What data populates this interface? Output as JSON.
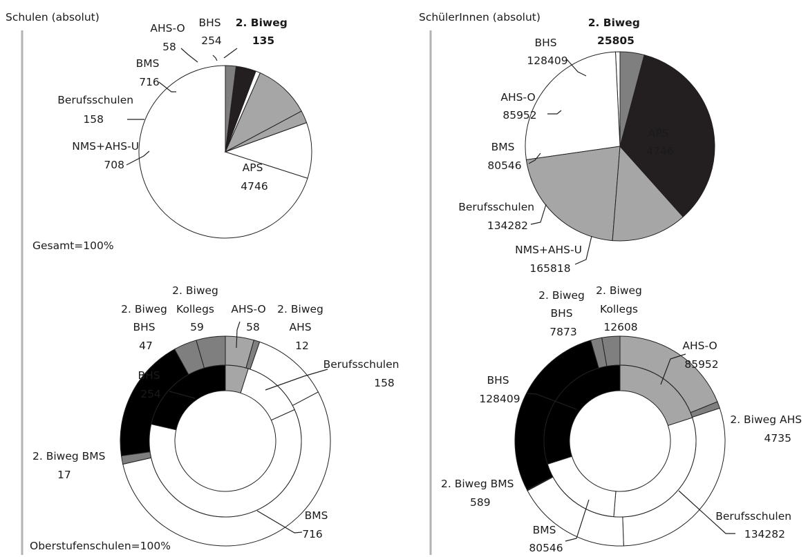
{
  "colors": {
    "aps": "#ffffff",
    "nms": "#ffffff",
    "berufsschulen": "#ffffff",
    "bms": "#ffffff",
    "bms_light": "#a6a6a6",
    "ahs_o": "#a6a6a6",
    "bhs": "#231f20",
    "biweg": "#7f7f7f",
    "stroke": "#231f20"
  },
  "charts": {
    "schulen": {
      "title": "Schulen (absolut)",
      "note": "Gesamt=100%",
      "labels": {
        "aps": [
          "APS",
          "4746"
        ],
        "nms": [
          "NMS+AHS-U",
          "708"
        ],
        "berufsschulen": [
          "Berufsschulen",
          "158"
        ],
        "bms": [
          "BMS",
          "716"
        ],
        "ahs_o": [
          "AHS-O",
          "58"
        ],
        "bhs": [
          "BHS",
          "254"
        ],
        "biweg": [
          "2. Biweg",
          "135"
        ]
      }
    },
    "schueler": {
      "title": "SchülerInnen (absolut)",
      "labels": {
        "aps": [
          "APS",
          "4746"
        ],
        "nms": [
          "NMS+AHS-U",
          "165818"
        ],
        "berufsschulen": [
          "Berufsschulen",
          "134282"
        ],
        "bms": [
          "BMS",
          "80546"
        ],
        "ahs_o": [
          "AHS-O",
          "85952"
        ],
        "bhs": [
          "BHS",
          "128409"
        ],
        "biweg": [
          "2. Biweg",
          "25805"
        ]
      }
    },
    "ober_schulen": {
      "note": "Oberstufenschulen=100%",
      "labels": {
        "biweg_kollegs": [
          "2. Biweg",
          "Kollegs",
          "59"
        ],
        "biweg_bhs": [
          "2. Biweg",
          "BHS",
          "47"
        ],
        "ahs_o": [
          "AHS-O",
          "58"
        ],
        "biweg_ahs": [
          "2. Biweg",
          "AHS",
          "12"
        ],
        "berufsschulen": [
          "Berufsschulen",
          "158"
        ],
        "bhs": [
          "BHS",
          "254"
        ],
        "biweg_bms": [
          "2. Biweg BMS",
          "17"
        ],
        "bms": [
          "BMS",
          "716"
        ]
      }
    },
    "ober_schueler": {
      "labels": {
        "biweg_kollegs": [
          "2. Biweg",
          "Kollegs",
          "12608"
        ],
        "biweg_bhs": [
          "2. Biweg",
          "BHS",
          "7873"
        ],
        "ahs_o": [
          "AHS-O",
          "85952"
        ],
        "biweg_ahs": [
          "2. Biweg AHS",
          "4735"
        ],
        "bhs": [
          "BHS",
          "128409"
        ],
        "berufsschulen": [
          "Berufsschulen",
          "134282"
        ],
        "biweg_bms": [
          "2. Biweg BMS",
          "589"
        ],
        "bms": [
          "BMS",
          "80546"
        ]
      }
    }
  },
  "chart_data": [
    {
      "type": "pie",
      "title": "Schulen (absolut)",
      "note": "Gesamt=100%",
      "slices": [
        {
          "name": "APS",
          "value": 4746,
          "color": "#ffffff"
        },
        {
          "name": "NMS+AHS-U",
          "value": 708,
          "color": "#ffffff"
        },
        {
          "name": "Berufsschulen",
          "value": 158,
          "color": "#a6a6a6"
        },
        {
          "name": "BMS",
          "value": 716,
          "color": "#a6a6a6"
        },
        {
          "name": "AHS-O",
          "value": 58,
          "color": "#ffffff"
        },
        {
          "name": "BHS",
          "value": 254,
          "color": "#231f20"
        },
        {
          "name": "2. Biweg",
          "value": 135,
          "color": "#7f7f7f"
        }
      ]
    },
    {
      "type": "pie",
      "title": "SchülerInnen (absolut)",
      "slices": [
        {
          "name": "APS",
          "value": 4746,
          "color": "#ffffff"
        },
        {
          "name": "NMS+AHS-U",
          "value": 165818,
          "color": "#ffffff"
        },
        {
          "name": "Berufsschulen",
          "value": 134282,
          "color": "#a6a6a6"
        },
        {
          "name": "BMS",
          "value": 80546,
          "color": "#a6a6a6"
        },
        {
          "name": "AHS-O",
          "value": 85952,
          "color": "#231f20"
        },
        {
          "name": "BHS",
          "value": 128409,
          "color": "#231f20"
        },
        {
          "name": "2. Biweg",
          "value": 25805,
          "color": "#7f7f7f"
        }
      ]
    },
    {
      "type": "donut",
      "note": "Oberstufenschulen=100%",
      "inner": [
        {
          "name": "AHS-O",
          "value": 58,
          "color": "#a6a6a6"
        },
        {
          "name": "Berufsschulen",
          "value": 158,
          "color": "#ffffff"
        },
        {
          "name": "BMS",
          "value": 716,
          "color": "#ffffff"
        },
        {
          "name": "BHS",
          "value": 254,
          "color": "#000000"
        }
      ],
      "outer": [
        {
          "name": "AHS-O",
          "value": 58,
          "color": "#a6a6a6"
        },
        {
          "name": "2. Biweg AHS",
          "value": 12,
          "color": "#7f7f7f"
        },
        {
          "name": "Berufsschulen",
          "value": 158,
          "color": "#ffffff"
        },
        {
          "name": "BMS",
          "value": 716,
          "color": "#ffffff"
        },
        {
          "name": "2. Biweg BMS",
          "value": 17,
          "color": "#7f7f7f"
        },
        {
          "name": "BHS",
          "value": 254,
          "color": "#000000"
        },
        {
          "name": "2. Biweg BHS",
          "value": 47,
          "color": "#7f7f7f"
        },
        {
          "name": "2. Biweg Kollegs",
          "value": 59,
          "color": "#7f7f7f"
        }
      ]
    },
    {
      "type": "donut",
      "inner": [
        {
          "name": "AHS-O",
          "value": 85952,
          "color": "#a6a6a6"
        },
        {
          "name": "Berufsschulen",
          "value": 134282,
          "color": "#ffffff"
        },
        {
          "name": "BMS",
          "value": 80546,
          "color": "#ffffff"
        },
        {
          "name": "BHS",
          "value": 128409,
          "color": "#000000"
        }
      ],
      "outer": [
        {
          "name": "AHS-O",
          "value": 85952,
          "color": "#a6a6a6"
        },
        {
          "name": "2. Biweg AHS",
          "value": 4735,
          "color": "#7f7f7f"
        },
        {
          "name": "Berufsschulen",
          "value": 134282,
          "color": "#ffffff"
        },
        {
          "name": "BMS",
          "value": 80546,
          "color": "#ffffff"
        },
        {
          "name": "2. Biweg BMS",
          "value": 589,
          "color": "#7f7f7f"
        },
        {
          "name": "BHS",
          "value": 128409,
          "color": "#000000"
        },
        {
          "name": "2. Biweg BHS",
          "value": 7873,
          "color": "#7f7f7f"
        },
        {
          "name": "2. Biweg Kollegs",
          "value": 12608,
          "color": "#7f7f7f"
        }
      ]
    }
  ]
}
